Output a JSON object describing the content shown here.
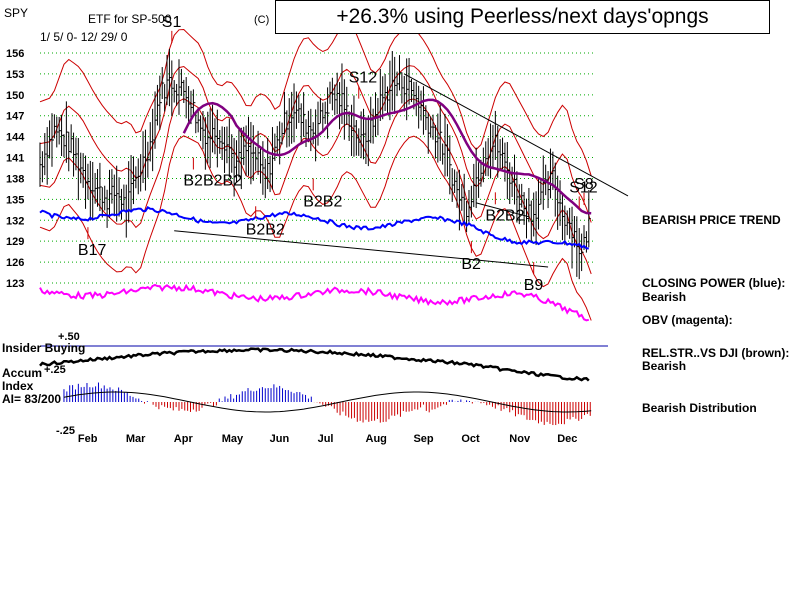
{
  "header": {
    "ticker": "SPY",
    "subtitle": "ETF for SP-500",
    "date_range": "1/ 5/ 0- 12/ 29/ 0",
    "copyright": "(C)",
    "banner": "+26.3% using Peerless/next days'opngs"
  },
  "right_labels": {
    "price_trend": "BEARISH PRICE TREND",
    "closing_power_1": "CLOSING POWER (blue):",
    "closing_power_2": "Bearish",
    "obv": "OBV (magenta):",
    "relstr_1": "REL.STR..VS DJI (brown):",
    "relstr_2": "Bearish",
    "distribution": "Bearish Distribution"
  },
  "indicator_labels": {
    "plus50": "+.50",
    "insider": "Insider Buying",
    "accum": "Accum",
    "minus25_inline": "+.25",
    "index": "Index",
    "ai": "AI= 83/200",
    "minus25": "-.25"
  },
  "colors": {
    "price": "#000000",
    "bands": "#cc0000",
    "ma": "#800080",
    "closing_power": "#0000ff",
    "obv": "#ff00ff",
    "relstr": "#000000",
    "grid": "#00aa00",
    "signal_arrow": "#cc0000",
    "hist_pos": "#0000cc",
    "hist_neg": "#cc0000",
    "insider_line": "#0000aa"
  },
  "chart_data": {
    "type": "line",
    "title": "ETF for SP-500",
    "ylim": [
      120,
      158
    ],
    "y_ticks": [
      156,
      153,
      150,
      147,
      144,
      141,
      138,
      135,
      132,
      129,
      126,
      123
    ],
    "x_ticks": [
      "Feb",
      "Mar",
      "Apr",
      "May",
      "Jun",
      "Jul",
      "Aug",
      "Sep",
      "Oct",
      "Nov",
      "Dec"
    ],
    "price_series": [
      {
        "m": 0.0,
        "v": 140
      },
      {
        "m": 0.3,
        "v": 145
      },
      {
        "m": 0.6,
        "v": 143
      },
      {
        "m": 0.9,
        "v": 139
      },
      {
        "m": 1.1,
        "v": 137
      },
      {
        "m": 1.4,
        "v": 135
      },
      {
        "m": 1.6,
        "v": 136
      },
      {
        "m": 1.8,
        "v": 134
      },
      {
        "m": 2.0,
        "v": 138
      },
      {
        "m": 2.3,
        "v": 143
      },
      {
        "m": 2.5,
        "v": 150
      },
      {
        "m": 2.7,
        "v": 152
      },
      {
        "m": 2.9,
        "v": 151
      },
      {
        "m": 3.1,
        "v": 150
      },
      {
        "m": 3.3,
        "v": 146
      },
      {
        "m": 3.5,
        "v": 144
      },
      {
        "m": 3.7,
        "v": 145
      },
      {
        "m": 3.9,
        "v": 143
      },
      {
        "m": 4.1,
        "v": 140
      },
      {
        "m": 4.3,
        "v": 142
      },
      {
        "m": 4.5,
        "v": 141
      },
      {
        "m": 4.7,
        "v": 138
      },
      {
        "m": 4.9,
        "v": 142
      },
      {
        "m": 5.1,
        "v": 146
      },
      {
        "m": 5.3,
        "v": 148
      },
      {
        "m": 5.5,
        "v": 146
      },
      {
        "m": 5.7,
        "v": 145
      },
      {
        "m": 5.9,
        "v": 147
      },
      {
        "m": 6.1,
        "v": 150
      },
      {
        "m": 6.3,
        "v": 149
      },
      {
        "m": 6.5,
        "v": 146
      },
      {
        "m": 6.7,
        "v": 143
      },
      {
        "m": 6.9,
        "v": 145
      },
      {
        "m": 7.1,
        "v": 149
      },
      {
        "m": 7.3,
        "v": 151
      },
      {
        "m": 7.5,
        "v": 152
      },
      {
        "m": 7.7,
        "v": 151
      },
      {
        "m": 7.9,
        "v": 149
      },
      {
        "m": 8.1,
        "v": 146
      },
      {
        "m": 8.3,
        "v": 144
      },
      {
        "m": 8.5,
        "v": 141
      },
      {
        "m": 8.7,
        "v": 136
      },
      {
        "m": 8.9,
        "v": 134
      },
      {
        "m": 9.1,
        "v": 138
      },
      {
        "m": 9.3,
        "v": 142
      },
      {
        "m": 9.5,
        "v": 143
      },
      {
        "m": 9.7,
        "v": 140
      },
      {
        "m": 9.9,
        "v": 137
      },
      {
        "m": 10.1,
        "v": 134
      },
      {
        "m": 10.3,
        "v": 133
      },
      {
        "m": 10.5,
        "v": 136
      },
      {
        "m": 10.7,
        "v": 138
      },
      {
        "m": 10.9,
        "v": 133
      },
      {
        "m": 11.1,
        "v": 131
      },
      {
        "m": 11.3,
        "v": 127
      },
      {
        "m": 11.5,
        "v": 133
      }
    ],
    "signals": [
      {
        "label": "S1",
        "m": 2.75,
        "dir": "sell"
      },
      {
        "label": "S12",
        "m": 6.65,
        "dir": "sell"
      },
      {
        "label": "S12",
        "m": 11.25,
        "dir": "sell"
      },
      {
        "label": "S8",
        "m": 11.35,
        "dir": "sell"
      },
      {
        "label": "B17",
        "m": 1.0,
        "dir": "buy"
      },
      {
        "label": "B2B2B2",
        "m": 3.2,
        "dir": "buy"
      },
      {
        "label": "B2B2",
        "m": 4.5,
        "dir": "buy"
      },
      {
        "label": "B2B2",
        "m": 5.7,
        "dir": "buy"
      },
      {
        "label": "B2",
        "m": 9.0,
        "dir": "buy"
      },
      {
        "label": "B2B2",
        "m": 9.5,
        "dir": "buy"
      },
      {
        "label": "B9",
        "m": 10.3,
        "dir": "buy"
      }
    ]
  }
}
